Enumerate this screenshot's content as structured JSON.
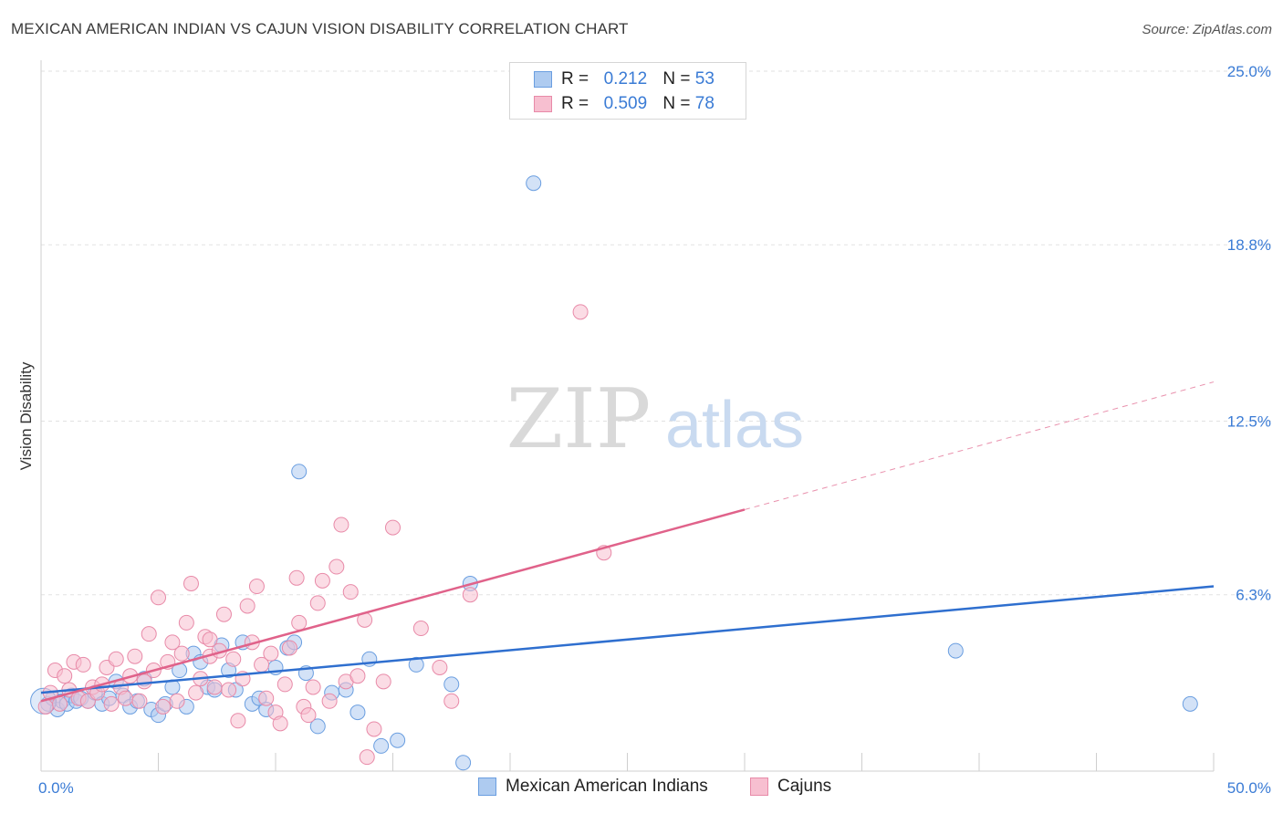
{
  "title": "MEXICAN AMERICAN INDIAN VS CAJUN VISION DISABILITY CORRELATION CHART",
  "source": "Source: ZipAtlas.com",
  "watermark": {
    "zip": "ZIP",
    "atlas": "atlas"
  },
  "legend": {
    "rows": [
      {
        "r_label": "R = ",
        "r_value": "0.212",
        "n_label": "N = ",
        "n_value": "53"
      },
      {
        "r_label": "R = ",
        "r_value": "0.509",
        "n_label": "N = ",
        "n_value": "78"
      }
    ]
  },
  "bottom_legend": [
    "Mexican American Indians",
    "Cajuns"
  ],
  "colors": {
    "blue_fill": "#aecbf0",
    "blue_stroke": "#6a9ee0",
    "blue_line": "#2f6fcf",
    "pink_fill": "#f7bfd0",
    "pink_stroke": "#e88aa8",
    "pink_line": "#e0628a",
    "axis_text": "#3a7bd5",
    "grid": "#e2e2e2"
  },
  "chart_data": {
    "type": "scatter",
    "title": "MEXICAN AMERICAN INDIAN VS CAJUN VISION DISABILITY CORRELATION CHART",
    "xlabel": "",
    "ylabel": "Vision Disability",
    "xlim": [
      0,
      50
    ],
    "ylim": [
      0,
      25
    ],
    "x_tick_labels": [
      "0.0%",
      "50.0%"
    ],
    "y_ticks": [
      6.3,
      12.5,
      18.8,
      25.0
    ],
    "y_tick_labels": [
      "6.3%",
      "12.5%",
      "18.8%",
      "25.0%"
    ],
    "grid": true,
    "series": [
      {
        "name": "Mexican American Indians",
        "r": 0.212,
        "n": 53,
        "trend": {
          "x": [
            0,
            50
          ],
          "y": [
            2.8,
            6.6
          ],
          "solid_until": 50
        },
        "points": [
          [
            0.3,
            2.4
          ],
          [
            0.5,
            2.6
          ],
          [
            0.7,
            2.2
          ],
          [
            0.9,
            2.5
          ],
          [
            1.1,
            2.4
          ],
          [
            1.3,
            2.7
          ],
          [
            1.5,
            2.5
          ],
          [
            1.7,
            2.6
          ],
          [
            2.0,
            2.5
          ],
          [
            2.3,
            2.8
          ],
          [
            2.6,
            2.4
          ],
          [
            2.9,
            2.6
          ],
          [
            3.2,
            3.2
          ],
          [
            3.5,
            2.7
          ],
          [
            3.8,
            2.3
          ],
          [
            4.1,
            2.5
          ],
          [
            4.4,
            3.3
          ],
          [
            4.7,
            2.2
          ],
          [
            5.0,
            2.0
          ],
          [
            5.3,
            2.4
          ],
          [
            5.6,
            3.0
          ],
          [
            5.9,
            3.6
          ],
          [
            6.2,
            2.3
          ],
          [
            6.5,
            4.2
          ],
          [
            6.8,
            3.9
          ],
          [
            7.1,
            3.0
          ],
          [
            7.4,
            2.9
          ],
          [
            7.7,
            4.5
          ],
          [
            8.0,
            3.6
          ],
          [
            8.3,
            2.9
          ],
          [
            8.6,
            4.6
          ],
          [
            9.0,
            2.4
          ],
          [
            9.3,
            2.6
          ],
          [
            9.6,
            2.2
          ],
          [
            10.0,
            3.7
          ],
          [
            10.5,
            4.4
          ],
          [
            10.8,
            4.6
          ],
          [
            11.3,
            3.5
          ],
          [
            11.8,
            1.6
          ],
          [
            12.4,
            2.8
          ],
          [
            13.0,
            2.9
          ],
          [
            13.5,
            2.1
          ],
          [
            14.0,
            4.0
          ],
          [
            14.5,
            0.9
          ],
          [
            15.2,
            1.1
          ],
          [
            16.0,
            3.8
          ],
          [
            17.5,
            3.1
          ],
          [
            18.0,
            0.3
          ],
          [
            18.3,
            6.7
          ],
          [
            11.0,
            10.7
          ],
          [
            21.0,
            21.0
          ],
          [
            39.0,
            4.3
          ],
          [
            49.0,
            2.4
          ]
        ]
      },
      {
        "name": "Cajuns",
        "r": 0.509,
        "n": 78,
        "trend": {
          "x": [
            0,
            50
          ],
          "y": [
            2.5,
            13.9
          ],
          "solid_until": 30
        },
        "points": [
          [
            0.2,
            2.3
          ],
          [
            0.4,
            2.8
          ],
          [
            0.6,
            3.6
          ],
          [
            0.8,
            2.4
          ],
          [
            1.0,
            3.4
          ],
          [
            1.2,
            2.9
          ],
          [
            1.4,
            3.9
          ],
          [
            1.6,
            2.6
          ],
          [
            1.8,
            3.8
          ],
          [
            2.0,
            2.5
          ],
          [
            2.2,
            3.0
          ],
          [
            2.4,
            2.8
          ],
          [
            2.6,
            3.1
          ],
          [
            2.8,
            3.7
          ],
          [
            3.0,
            2.4
          ],
          [
            3.2,
            4.0
          ],
          [
            3.4,
            3.0
          ],
          [
            3.6,
            2.6
          ],
          [
            3.8,
            3.4
          ],
          [
            4.0,
            4.1
          ],
          [
            4.2,
            2.5
          ],
          [
            4.4,
            3.2
          ],
          [
            4.6,
            4.9
          ],
          [
            4.8,
            3.6
          ],
          [
            5.0,
            6.2
          ],
          [
            5.2,
            2.3
          ],
          [
            5.4,
            3.9
          ],
          [
            5.6,
            4.6
          ],
          [
            5.8,
            2.5
          ],
          [
            6.0,
            4.2
          ],
          [
            6.2,
            5.3
          ],
          [
            6.4,
            6.7
          ],
          [
            6.6,
            2.8
          ],
          [
            6.8,
            3.3
          ],
          [
            7.0,
            4.8
          ],
          [
            7.2,
            4.1
          ],
          [
            7.4,
            3.0
          ],
          [
            7.6,
            4.3
          ],
          [
            7.8,
            5.6
          ],
          [
            8.0,
            2.9
          ],
          [
            8.2,
            4.0
          ],
          [
            8.4,
            1.8
          ],
          [
            8.6,
            3.3
          ],
          [
            8.8,
            5.9
          ],
          [
            9.0,
            4.6
          ],
          [
            9.2,
            6.6
          ],
          [
            9.4,
            3.8
          ],
          [
            9.6,
            2.6
          ],
          [
            9.8,
            4.2
          ],
          [
            10.0,
            2.1
          ],
          [
            10.2,
            1.7
          ],
          [
            10.4,
            3.1
          ],
          [
            10.6,
            4.4
          ],
          [
            11.0,
            5.3
          ],
          [
            11.2,
            2.3
          ],
          [
            11.4,
            2.0
          ],
          [
            11.6,
            3.0
          ],
          [
            11.8,
            6.0
          ],
          [
            12.0,
            6.8
          ],
          [
            12.3,
            2.5
          ],
          [
            12.6,
            7.3
          ],
          [
            13.0,
            3.2
          ],
          [
            13.2,
            6.4
          ],
          [
            13.5,
            3.4
          ],
          [
            13.8,
            5.4
          ],
          [
            14.2,
            1.5
          ],
          [
            14.6,
            3.2
          ],
          [
            15.0,
            8.7
          ],
          [
            16.2,
            5.1
          ],
          [
            17.0,
            3.7
          ],
          [
            17.5,
            2.5
          ],
          [
            18.3,
            6.3
          ],
          [
            7.2,
            4.7
          ],
          [
            10.9,
            6.9
          ],
          [
            12.8,
            8.8
          ],
          [
            13.9,
            0.5
          ],
          [
            24.0,
            7.8
          ],
          [
            23.0,
            16.4
          ]
        ]
      }
    ]
  }
}
